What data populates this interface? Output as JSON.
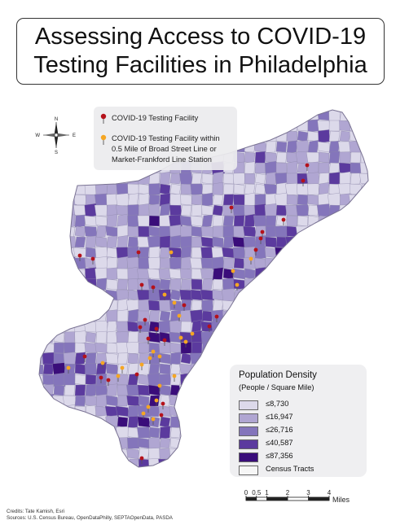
{
  "title": {
    "line1": "Assessing Access to COVID-19",
    "line2": "Testing Facilities in Philadelphia"
  },
  "compass": {
    "n": "N",
    "s": "S",
    "e": "E",
    "w": "W"
  },
  "facility_legend": {
    "item1": "COVID-19 Testing Facility",
    "item2_lines": [
      "COVID-19 Testing Facility within",
      "0.5 Mile of Broad Street Line or",
      "Market-Frankford Line Station"
    ],
    "colors": {
      "facility": "#b5121b",
      "near_station": "#f5a623"
    }
  },
  "density_legend": {
    "title": "Population Density",
    "subtitle": "(People / Square Mile)",
    "classes": [
      {
        "label": "≤8,730",
        "color": "#dcd9ea"
      },
      {
        "label": "≤16,947",
        "color": "#b0a6d2"
      },
      {
        "label": "≤26,716",
        "color": "#8475bb"
      },
      {
        "label": "≤40,587",
        "color": "#5b3a9e"
      },
      {
        "label": "≤87,356",
        "color": "#3a0d7a"
      },
      {
        "label": "Census Tracts",
        "color": "#f6f6f6"
      }
    ]
  },
  "scale_bar": {
    "ticks": [
      "0",
      "0.5",
      "1",
      "2",
      "3",
      "4"
    ],
    "tick_values": [
      0,
      0.5,
      1,
      2,
      3,
      4
    ],
    "unit": "Miles"
  },
  "credits": {
    "line1": "Credits: Tate Kamish, Esri",
    "line2": "Sources: U.S. Census Bureau, OpenDataPhilly, SEPTAOpenData, PASDA"
  }
}
